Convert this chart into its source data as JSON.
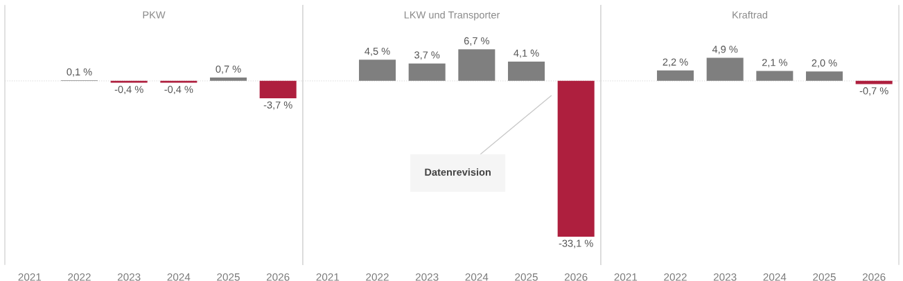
{
  "chart_data": [
    {
      "type": "bar",
      "title": "PKW",
      "categories": [
        "2021",
        "2022",
        "2023",
        "2024",
        "2025",
        "2026"
      ],
      "values": [
        null,
        0.1,
        -0.4,
        -0.4,
        0.7,
        -3.7
      ],
      "colors": [
        null,
        "#7f7f7f",
        "#ae1f3e",
        "#ae1f3e",
        "#7f7f7f",
        "#ae1f3e"
      ],
      "value_labels": [
        null,
        "0,1 %",
        "-0,4 %",
        "-0,4 %",
        "0,7 %",
        "-3,7 %"
      ],
      "ylim": [
        -39,
        16
      ],
      "tick_labels": "x",
      "ref_lines": [
        {
          "axis": "y",
          "value": 0,
          "color": "#dddddd",
          "line_style": "dotted"
        }
      ]
    },
    {
      "type": "bar",
      "title": "LKW und Transporter",
      "categories": [
        "2021",
        "2022",
        "2023",
        "2024",
        "2025",
        "2026"
      ],
      "values": [
        null,
        4.5,
        3.7,
        6.7,
        4.1,
        -33.1
      ],
      "colors": [
        null,
        "#7f7f7f",
        "#7f7f7f",
        "#7f7f7f",
        "#7f7f7f",
        "#ae1f3e"
      ],
      "value_labels": [
        null,
        "4,5 %",
        "3,7 %",
        "6,7 %",
        "4,1 %",
        "-33,1 %"
      ],
      "ylim": [
        -39,
        16
      ],
      "tick_labels": "x",
      "ref_lines": [
        {
          "axis": "y",
          "value": 0,
          "color": "#dddddd",
          "line_style": "dotted"
        }
      ],
      "annotations": [
        "Datenrevision"
      ]
    },
    {
      "type": "bar",
      "title": "Kraftrad",
      "categories": [
        "2021",
        "2022",
        "2023",
        "2024",
        "2025",
        "2026"
      ],
      "values": [
        null,
        2.2,
        4.9,
        2.1,
        2.0,
        -0.7
      ],
      "colors": [
        null,
        "#7f7f7f",
        "#7f7f7f",
        "#7f7f7f",
        "#7f7f7f",
        "#ae1f3e"
      ],
      "value_labels": [
        null,
        "2,2 %",
        "4,9 %",
        "2,1 %",
        "2,0 %",
        "-0,7 %"
      ],
      "ylim": [
        -39,
        16
      ],
      "tick_labels": "x",
      "ref_lines": [
        {
          "axis": "y",
          "value": 0,
          "color": "#dddddd",
          "line_style": "dotted"
        }
      ]
    }
  ]
}
